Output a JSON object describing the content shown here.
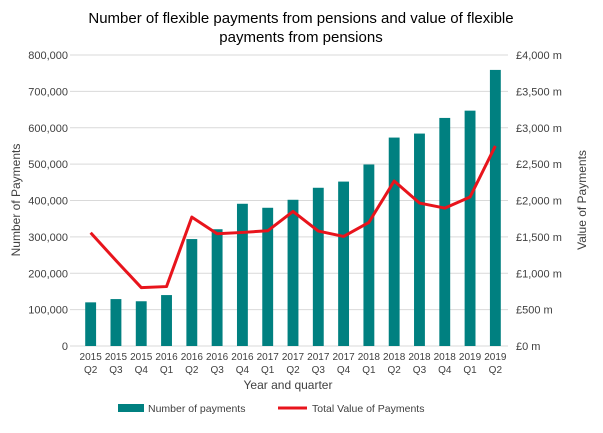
{
  "chart_data": {
    "type": "bar+line",
    "title_lines": [
      "Number of flexible payments from pensions and value of flexible",
      "payments from pensions"
    ],
    "xlabel": "Year and quarter",
    "ylabel": "Number of Payments",
    "y2label": "Value of Payments",
    "categories": [
      [
        "2015",
        "Q2"
      ],
      [
        "2015",
        "Q3"
      ],
      [
        "2015",
        "Q4"
      ],
      [
        "2016",
        "Q1"
      ],
      [
        "2016",
        "Q2"
      ],
      [
        "2016",
        "Q3"
      ],
      [
        "2016",
        "Q4"
      ],
      [
        "2017",
        "Q1"
      ],
      [
        "2017",
        "Q2"
      ],
      [
        "2017",
        "Q3"
      ],
      [
        "2017",
        "Q4"
      ],
      [
        "2018",
        "Q1"
      ],
      [
        "2018",
        "Q2"
      ],
      [
        "2018",
        "Q3"
      ],
      [
        "2018",
        "Q4"
      ],
      [
        "2019",
        "Q1"
      ],
      [
        "2019",
        "Q2"
      ]
    ],
    "ylim": [
      0,
      800000
    ],
    "y2lim": [
      0,
      4000
    ],
    "yticks": [
      "0",
      "100,000",
      "200,000",
      "300,000",
      "400,000",
      "500,000",
      "600,000",
      "700,000",
      "800,000"
    ],
    "y2ticks": [
      "£0 m",
      "£500 m",
      "£1,000 m",
      "£1,500 m",
      "£2,000 m",
      "£2,500 m",
      "£3,000 m",
      "£3,500 m",
      "£4,000 m"
    ],
    "grid": true,
    "legend_position": "bottom",
    "series": [
      {
        "name": "Number of payments",
        "type": "bar",
        "axis": "left",
        "color": "#008080",
        "values": [
          120000,
          129000,
          123000,
          140000,
          294000,
          321000,
          391000,
          380000,
          402000,
          435000,
          452000,
          499000,
          573000,
          584000,
          627000,
          647000,
          759000
        ]
      },
      {
        "name": "Total Value of Payments",
        "type": "line",
        "axis": "right",
        "unit": "£m",
        "color": "#e8141c",
        "values": [
          1557,
          1175,
          803,
          817,
          1772,
          1543,
          1561,
          1584,
          1850,
          1580,
          1506,
          1699,
          2268,
          1965,
          1896,
          2048,
          2750
        ]
      }
    ]
  }
}
